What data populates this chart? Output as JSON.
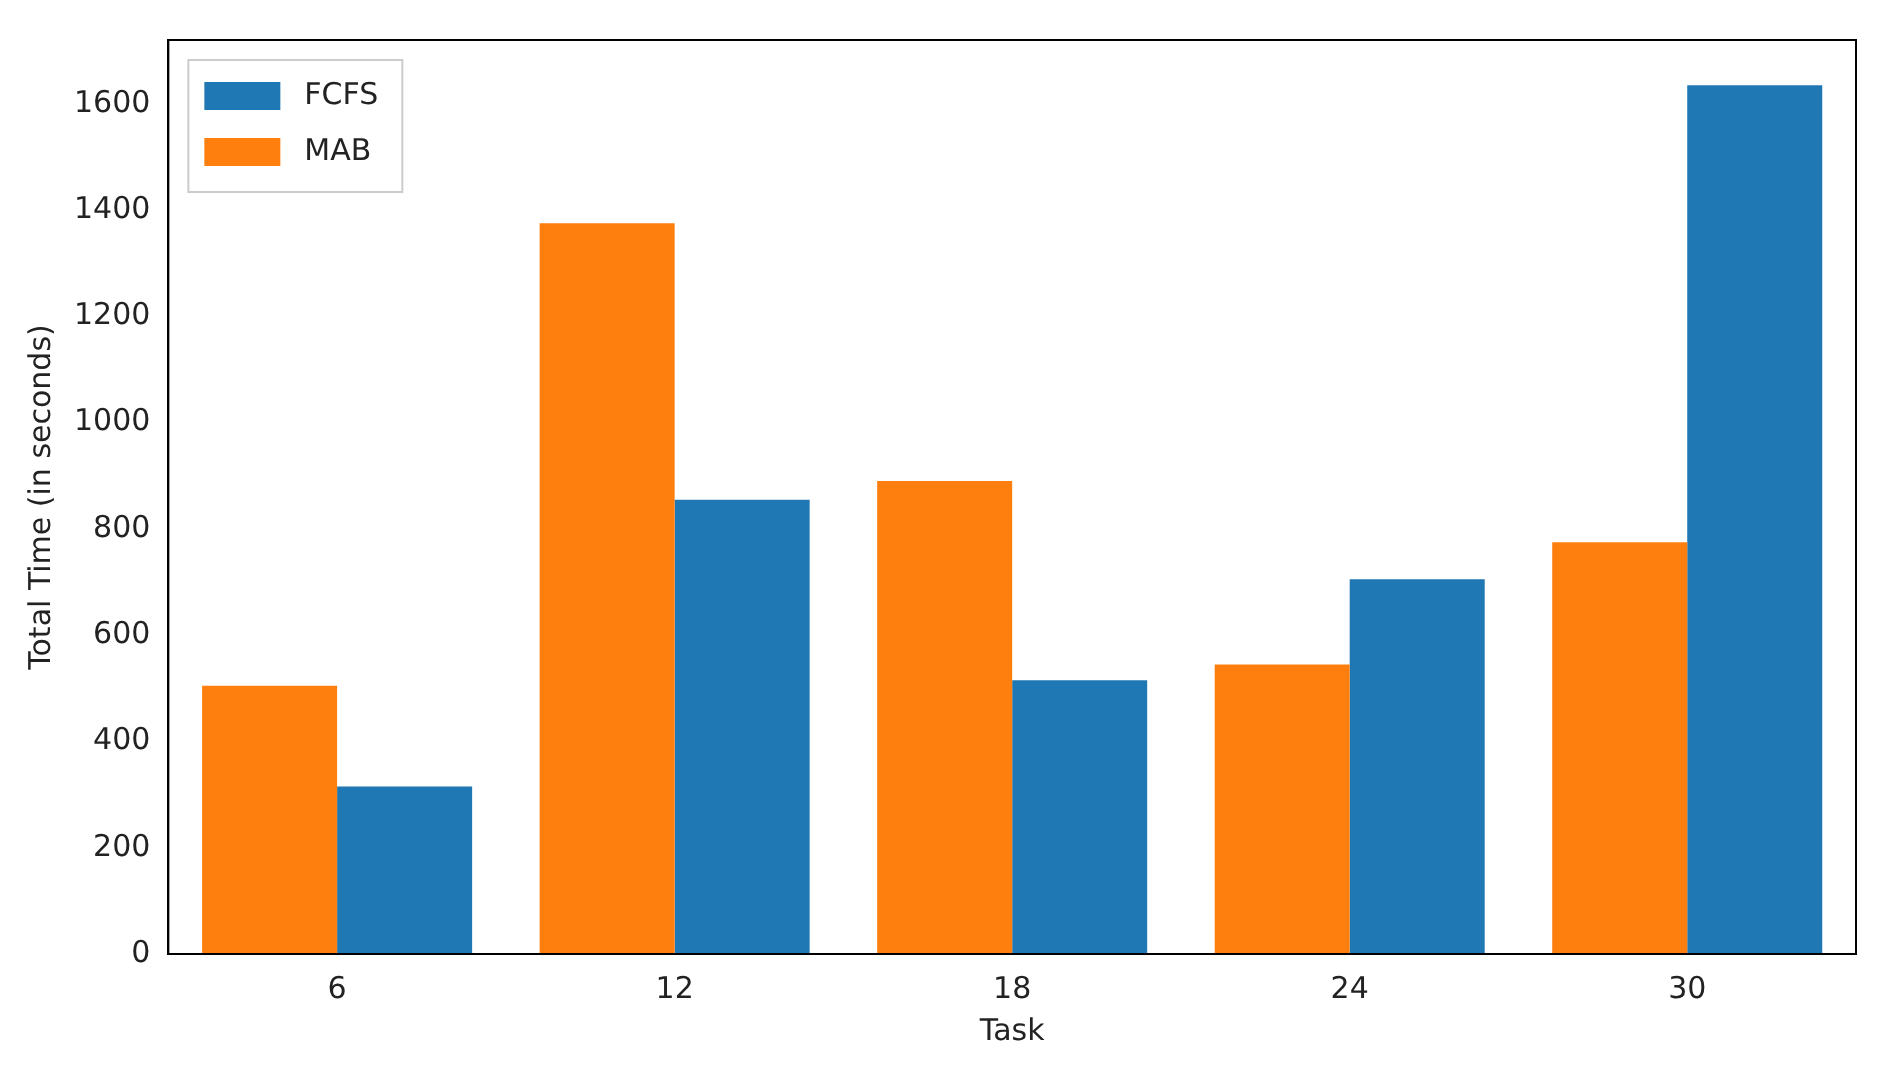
{
  "chart_data": {
    "type": "bar",
    "xlabel": "Task",
    "ylabel": "Total Time (in seconds)",
    "categories": [
      "6",
      "12",
      "18",
      "24",
      "30"
    ],
    "series": [
      {
        "name": "FCFS",
        "color": "#1f77b4",
        "values": [
          315,
          855,
          515,
          705,
          1635
        ]
      },
      {
        "name": "MAB",
        "color": "#ff7f0e",
        "values": [
          505,
          1375,
          890,
          545,
          775
        ]
      }
    ],
    "ylim": [
      0,
      1720
    ],
    "yticks": [
      0,
      200,
      400,
      600,
      800,
      1000,
      1200,
      1400,
      1600
    ],
    "grid": false,
    "legend": "top left"
  }
}
